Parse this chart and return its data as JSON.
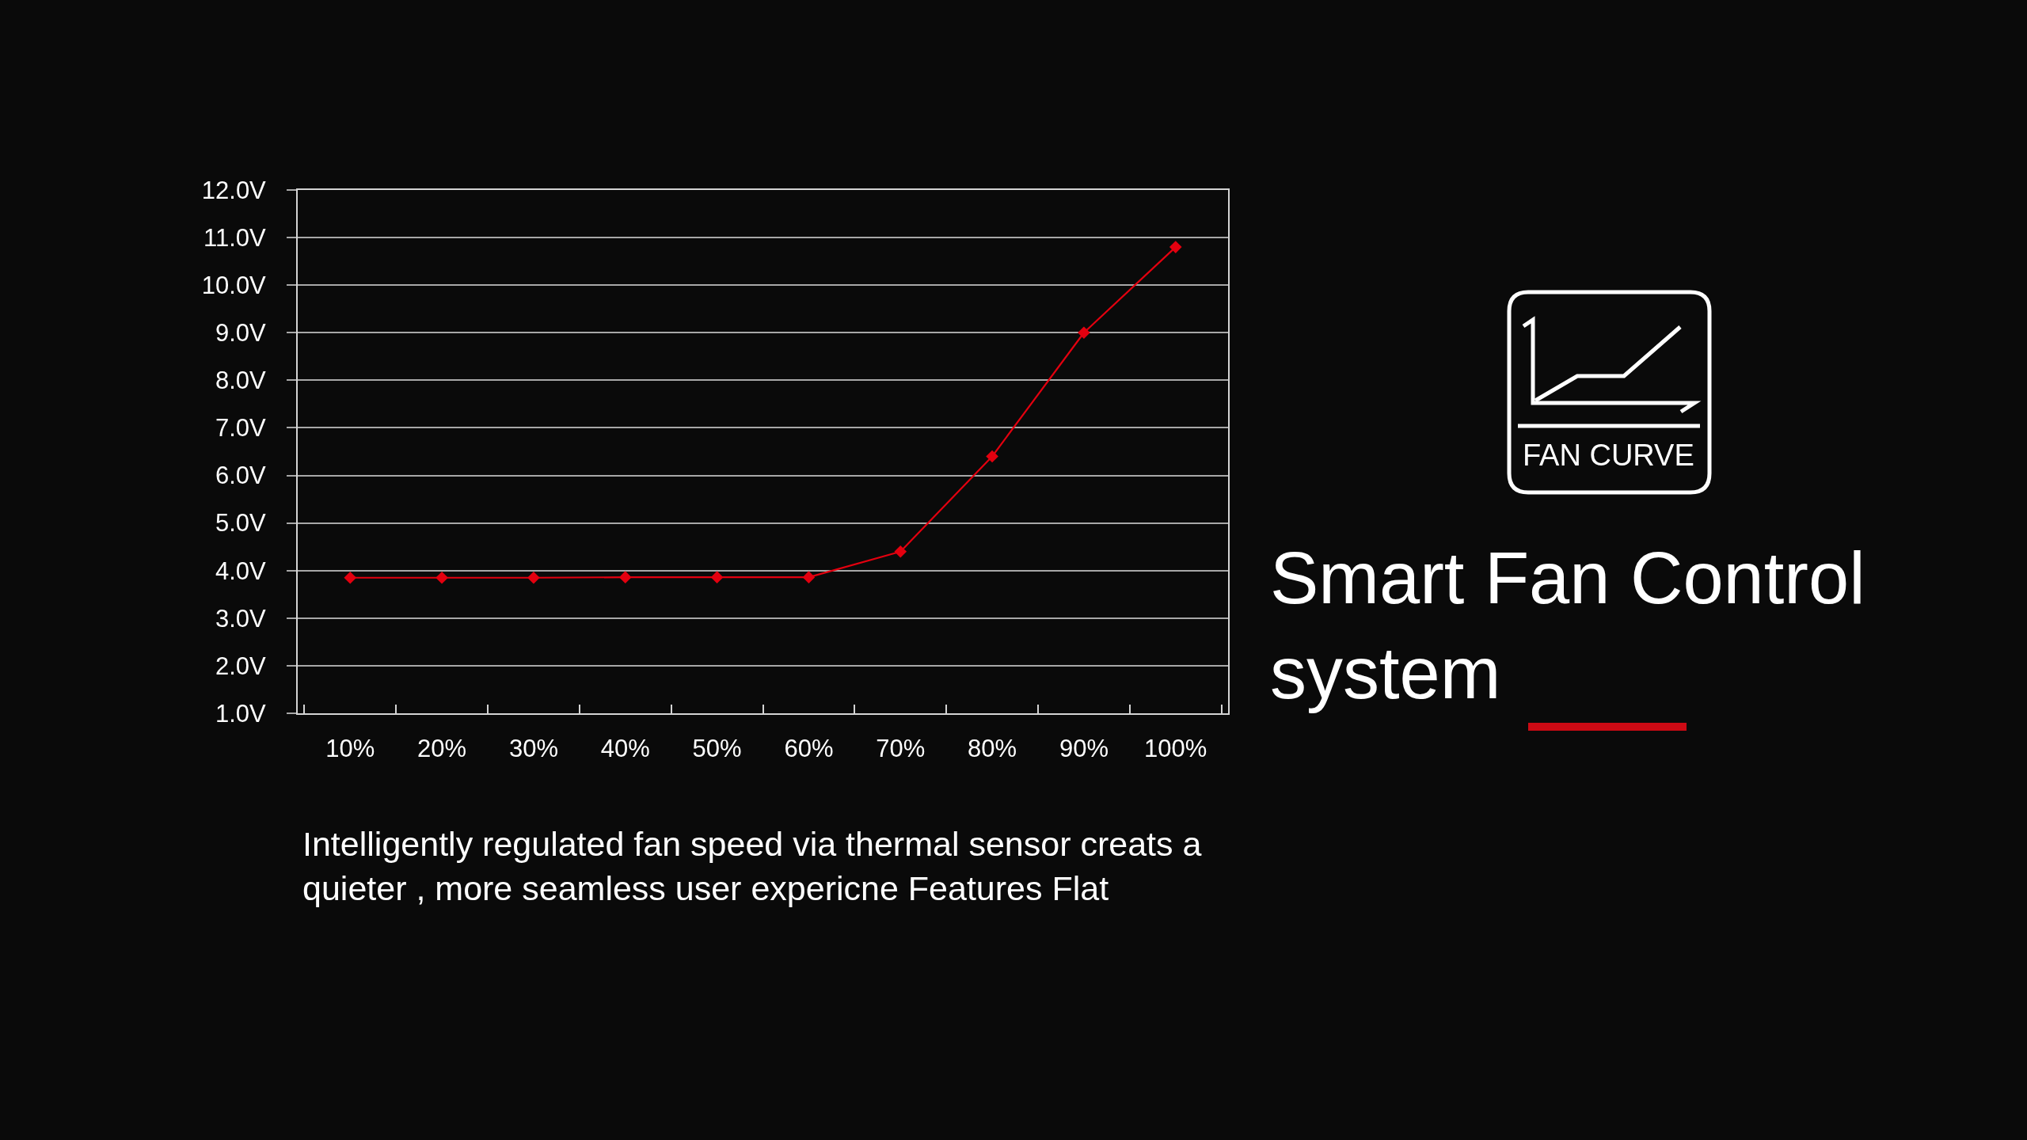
{
  "chart_data": {
    "type": "line",
    "title": "Smart Fan Control system",
    "categories": [
      "10%",
      "20%",
      "30%",
      "40%",
      "50%",
      "60%",
      "70%",
      "80%",
      "90%",
      "100%"
    ],
    "series": [
      {
        "color": "#e3000f",
        "values": [
          3.85,
          3.85,
          3.85,
          3.86,
          3.86,
          3.86,
          4.4,
          6.4,
          9.0,
          10.8
        ]
      }
    ],
    "ylim": [
      1,
      12
    ],
    "yticks": [
      {
        "value": 1,
        "label": "1.0V"
      },
      {
        "value": 2,
        "label": "2.0V"
      },
      {
        "value": 3,
        "label": "3.0V"
      },
      {
        "value": 4,
        "label": "4.0V"
      },
      {
        "value": 5,
        "label": "5.0V"
      },
      {
        "value": 6,
        "label": "6.0V"
      },
      {
        "value": 7,
        "label": "7.0V"
      },
      {
        "value": 8,
        "label": "8.0V"
      },
      {
        "value": 9,
        "label": "9.0V"
      },
      {
        "value": 10,
        "label": "10.0V"
      },
      {
        "value": 11,
        "label": "11.0V"
      },
      {
        "value": 12,
        "label": "12.0V"
      }
    ],
    "grid": "y",
    "marker": "diamond",
    "line_style": "solid",
    "annotations": [
      "FAN CURVE",
      "Intelligently regulated fan speed via thermal sensor creats a quieter , more seamless user expericne Features Flat"
    ]
  }
}
